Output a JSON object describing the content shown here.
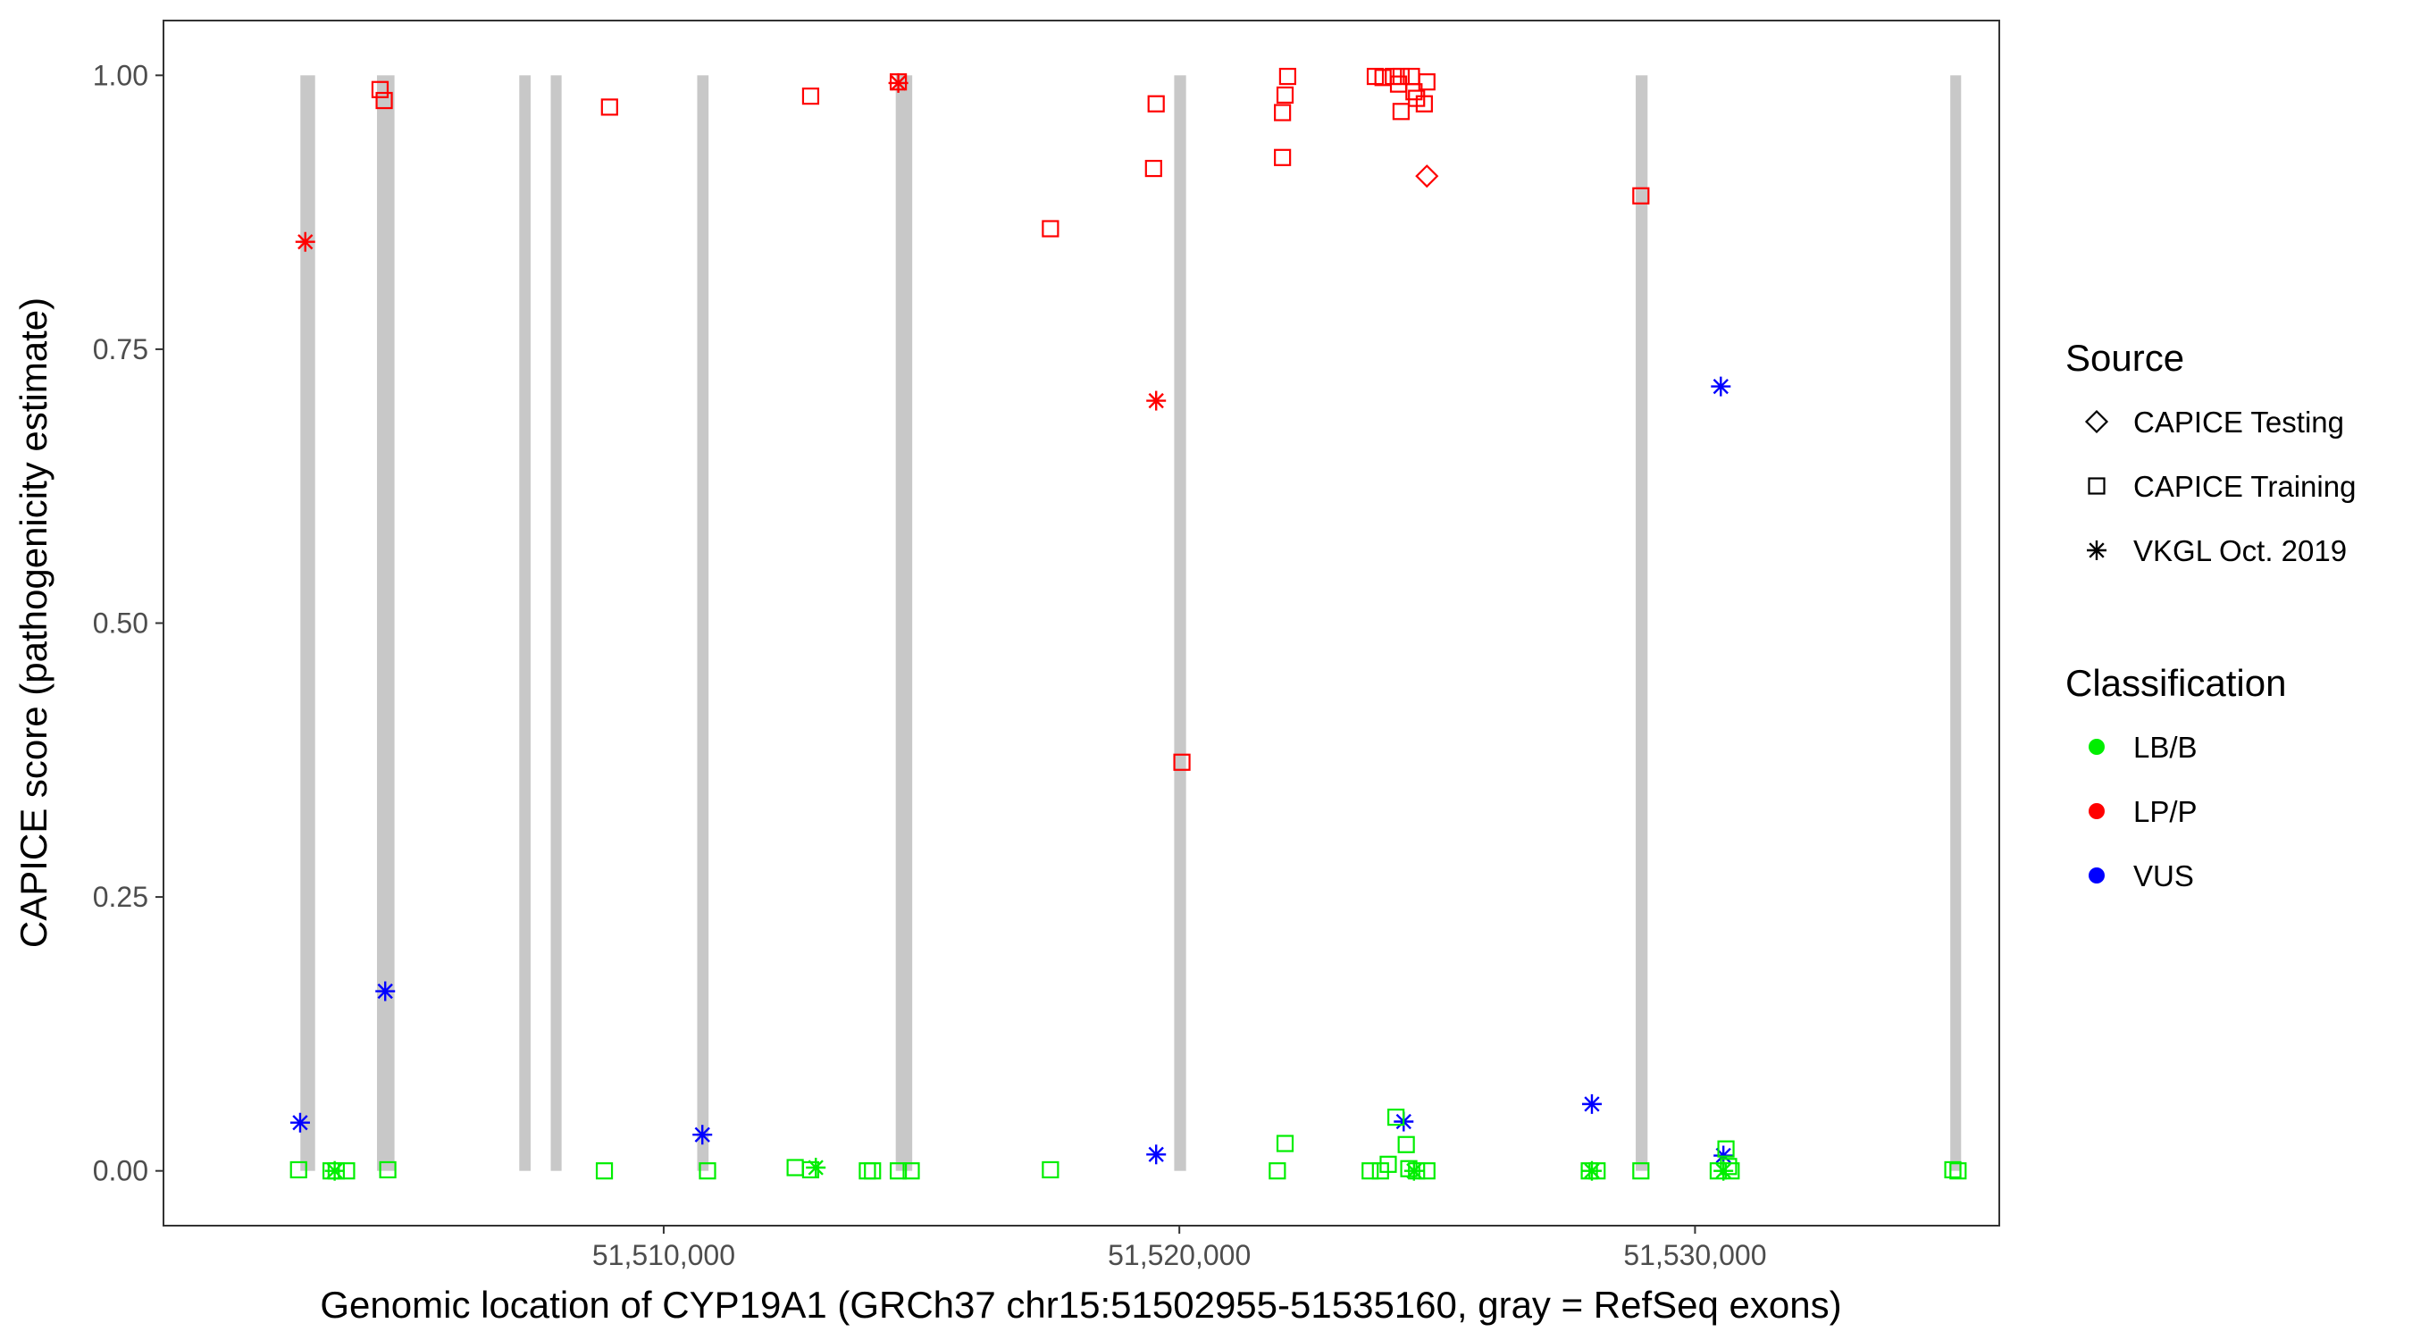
{
  "chart_data": {
    "type": "scatter",
    "xlabel": "Genomic location of CYP19A1 (GRCh37 chr15:51502955-51535160, gray = RefSeq exons)",
    "ylabel": "CAPICE score (pathogenicity estimate)",
    "xlim": [
      51500300,
      51535900
    ],
    "ylim": [
      -0.05,
      1.05
    ],
    "x_ticks": [
      51510000,
      51520000,
      51530000
    ],
    "x_tick_labels": [
      "51,510,000",
      "51,520,000",
      "51,530,000"
    ],
    "y_ticks": [
      0.0,
      0.25,
      0.5,
      0.75,
      1.0
    ],
    "y_tick_labels": [
      "0.00",
      "0.25",
      "0.50",
      "0.75",
      "1.00"
    ],
    "grid": false,
    "exon_color": "#c8c8c8",
    "exons": [
      {
        "start": 51502955,
        "end": 51503240
      },
      {
        "start": 51504440,
        "end": 51504780
      },
      {
        "start": 51507200,
        "end": 51507420
      },
      {
        "start": 51507810,
        "end": 51508020
      },
      {
        "start": 51510650,
        "end": 51510870
      },
      {
        "start": 51514500,
        "end": 51514820
      },
      {
        "start": 51519900,
        "end": 51520130
      },
      {
        "start": 51528850,
        "end": 51529080
      },
      {
        "start": 51534950,
        "end": 51535160
      }
    ],
    "legends": [
      {
        "title": "Source",
        "position": "right",
        "entries": [
          {
            "label": "CAPICE Testing",
            "shape": "diamond"
          },
          {
            "label": "CAPICE Training",
            "shape": "square"
          },
          {
            "label": "VKGL Oct. 2019",
            "shape": "asterisk"
          }
        ]
      },
      {
        "title": "Classification",
        "position": "right",
        "entries": [
          {
            "label": "LB/B",
            "color": "#00ee00"
          },
          {
            "label": "LP/P",
            "color": "#ff0000"
          },
          {
            "label": "VUS",
            "color": "#0000ff"
          }
        ]
      }
    ],
    "class_colors": {
      "LB/B": "#00ee00",
      "LP/P": "#ff0000",
      "VUS": "#0000ff"
    },
    "points": [
      {
        "x": 51504500,
        "y": 0.987,
        "source": "CAPICE Training",
        "class": "LP/P"
      },
      {
        "x": 51504580,
        "y": 0.977,
        "source": "CAPICE Training",
        "class": "LP/P"
      },
      {
        "x": 51508950,
        "y": 0.971,
        "source": "CAPICE Training",
        "class": "LP/P"
      },
      {
        "x": 51512850,
        "y": 0.981,
        "source": "CAPICE Training",
        "class": "LP/P"
      },
      {
        "x": 51514550,
        "y": 0.994,
        "source": "CAPICE Training",
        "class": "LP/P"
      },
      {
        "x": 51517500,
        "y": 0.86,
        "source": "CAPICE Training",
        "class": "LP/P"
      },
      {
        "x": 51519550,
        "y": 0.974,
        "source": "CAPICE Training",
        "class": "LP/P"
      },
      {
        "x": 51519500,
        "y": 0.915,
        "source": "CAPICE Training",
        "class": "LP/P"
      },
      {
        "x": 51520050,
        "y": 0.373,
        "source": "CAPICE Training",
        "class": "LP/P"
      },
      {
        "x": 51522100,
        "y": 0.999,
        "source": "CAPICE Training",
        "class": "LP/P"
      },
      {
        "x": 51522050,
        "y": 0.982,
        "source": "CAPICE Training",
        "class": "LP/P"
      },
      {
        "x": 51522000,
        "y": 0.966,
        "source": "CAPICE Training",
        "class": "LP/P"
      },
      {
        "x": 51522000,
        "y": 0.925,
        "source": "CAPICE Training",
        "class": "LP/P"
      },
      {
        "x": 51523800,
        "y": 0.999,
        "source": "CAPICE Training",
        "class": "LP/P"
      },
      {
        "x": 51523950,
        "y": 0.998,
        "source": "CAPICE Training",
        "class": "LP/P"
      },
      {
        "x": 51524150,
        "y": 0.999,
        "source": "CAPICE Training",
        "class": "LP/P"
      },
      {
        "x": 51524300,
        "y": 0.999,
        "source": "CAPICE Training",
        "class": "LP/P"
      },
      {
        "x": 51524500,
        "y": 0.999,
        "source": "CAPICE Training",
        "class": "LP/P"
      },
      {
        "x": 51524250,
        "y": 0.992,
        "source": "CAPICE Training",
        "class": "LP/P"
      },
      {
        "x": 51524800,
        "y": 0.994,
        "source": "CAPICE Training",
        "class": "LP/P"
      },
      {
        "x": 51524550,
        "y": 0.985,
        "source": "CAPICE Training",
        "class": "LP/P"
      },
      {
        "x": 51524600,
        "y": 0.979,
        "source": "CAPICE Training",
        "class": "LP/P"
      },
      {
        "x": 51524750,
        "y": 0.974,
        "source": "CAPICE Training",
        "class": "LP/P"
      },
      {
        "x": 51524300,
        "y": 0.967,
        "source": "CAPICE Training",
        "class": "LP/P"
      },
      {
        "x": 51528950,
        "y": 0.89,
        "source": "CAPICE Training",
        "class": "LP/P"
      },
      {
        "x": 51524800,
        "y": 0.908,
        "source": "CAPICE Testing",
        "class": "LP/P"
      },
      {
        "x": 51503050,
        "y": 0.848,
        "source": "VKGL Oct. 2019",
        "class": "LP/P"
      },
      {
        "x": 51514550,
        "y": 0.993,
        "source": "VKGL Oct. 2019",
        "class": "LP/P"
      },
      {
        "x": 51519550,
        "y": 0.703,
        "source": "VKGL Oct. 2019",
        "class": "LP/P"
      },
      {
        "x": 51502950,
        "y": 0.044,
        "source": "VKGL Oct. 2019",
        "class": "VUS"
      },
      {
        "x": 51504600,
        "y": 0.164,
        "source": "VKGL Oct. 2019",
        "class": "VUS"
      },
      {
        "x": 51510750,
        "y": 0.033,
        "source": "VKGL Oct. 2019",
        "class": "VUS"
      },
      {
        "x": 51519550,
        "y": 0.015,
        "source": "VKGL Oct. 2019",
        "class": "VUS"
      },
      {
        "x": 51524350,
        "y": 0.045,
        "source": "VKGL Oct. 2019",
        "class": "VUS"
      },
      {
        "x": 51528000,
        "y": 0.061,
        "source": "VKGL Oct. 2019",
        "class": "VUS"
      },
      {
        "x": 51530500,
        "y": 0.716,
        "source": "VKGL Oct. 2019",
        "class": "VUS"
      },
      {
        "x": 51530550,
        "y": 0.014,
        "source": "VKGL Oct. 2019",
        "class": "VUS"
      },
      {
        "x": 51502920,
        "y": 0.001,
        "source": "CAPICE Training",
        "class": "LB/B"
      },
      {
        "x": 51503550,
        "y": 0.0,
        "source": "CAPICE Training",
        "class": "LB/B"
      },
      {
        "x": 51503650,
        "y": 0.0,
        "source": "CAPICE Training",
        "class": "LB/B"
      },
      {
        "x": 51503850,
        "y": 0.0,
        "source": "CAPICE Training",
        "class": "LB/B"
      },
      {
        "x": 51504650,
        "y": 0.001,
        "source": "CAPICE Training",
        "class": "LB/B"
      },
      {
        "x": 51508850,
        "y": 0.0,
        "source": "CAPICE Training",
        "class": "LB/B"
      },
      {
        "x": 51510850,
        "y": 0.0,
        "source": "CAPICE Training",
        "class": "LB/B"
      },
      {
        "x": 51512550,
        "y": 0.003,
        "source": "CAPICE Training",
        "class": "LB/B"
      },
      {
        "x": 51512850,
        "y": 0.001,
        "source": "CAPICE Training",
        "class": "LB/B"
      },
      {
        "x": 51513950,
        "y": 0.0,
        "source": "CAPICE Training",
        "class": "LB/B"
      },
      {
        "x": 51514050,
        "y": 0.0,
        "source": "CAPICE Training",
        "class": "LB/B"
      },
      {
        "x": 51514550,
        "y": 0.0,
        "source": "CAPICE Training",
        "class": "LB/B"
      },
      {
        "x": 51514800,
        "y": 0.0,
        "source": "CAPICE Training",
        "class": "LB/B"
      },
      {
        "x": 51517500,
        "y": 0.001,
        "source": "CAPICE Training",
        "class": "LB/B"
      },
      {
        "x": 51521900,
        "y": 0.0,
        "source": "CAPICE Training",
        "class": "LB/B"
      },
      {
        "x": 51522050,
        "y": 0.025,
        "source": "CAPICE Training",
        "class": "LB/B"
      },
      {
        "x": 51523700,
        "y": 0.0,
        "source": "CAPICE Training",
        "class": "LB/B"
      },
      {
        "x": 51523900,
        "y": 0.0,
        "source": "CAPICE Training",
        "class": "LB/B"
      },
      {
        "x": 51524050,
        "y": 0.006,
        "source": "CAPICE Training",
        "class": "LB/B"
      },
      {
        "x": 51524200,
        "y": 0.049,
        "source": "CAPICE Training",
        "class": "LB/B"
      },
      {
        "x": 51524400,
        "y": 0.024,
        "source": "CAPICE Training",
        "class": "LB/B"
      },
      {
        "x": 51524450,
        "y": 0.002,
        "source": "CAPICE Training",
        "class": "LB/B"
      },
      {
        "x": 51524600,
        "y": 0.0,
        "source": "CAPICE Training",
        "class": "LB/B"
      },
      {
        "x": 51524800,
        "y": 0.0,
        "source": "CAPICE Training",
        "class": "LB/B"
      },
      {
        "x": 51527950,
        "y": 0.0,
        "source": "CAPICE Training",
        "class": "LB/B"
      },
      {
        "x": 51528100,
        "y": 0.0,
        "source": "CAPICE Training",
        "class": "LB/B"
      },
      {
        "x": 51528950,
        "y": 0.0,
        "source": "CAPICE Training",
        "class": "LB/B"
      },
      {
        "x": 51530450,
        "y": 0.0,
        "source": "CAPICE Training",
        "class": "LB/B"
      },
      {
        "x": 51530600,
        "y": 0.02,
        "source": "CAPICE Training",
        "class": "LB/B"
      },
      {
        "x": 51530650,
        "y": 0.004,
        "source": "CAPICE Training",
        "class": "LB/B"
      },
      {
        "x": 51530700,
        "y": 0.0,
        "source": "CAPICE Training",
        "class": "LB/B"
      },
      {
        "x": 51535000,
        "y": 0.001,
        "source": "CAPICE Training",
        "class": "LB/B"
      },
      {
        "x": 51535100,
        "y": 0.0,
        "source": "CAPICE Training",
        "class": "LB/B"
      },
      {
        "x": 51503620,
        "y": 0.0,
        "source": "VKGL Oct. 2019",
        "class": "LB/B"
      },
      {
        "x": 51512950,
        "y": 0.003,
        "source": "VKGL Oct. 2019",
        "class": "LB/B"
      },
      {
        "x": 51524550,
        "y": 0.0,
        "source": "VKGL Oct. 2019",
        "class": "LB/B"
      },
      {
        "x": 51528000,
        "y": 0.0,
        "source": "VKGL Oct. 2019",
        "class": "LB/B"
      },
      {
        "x": 51530550,
        "y": 0.0,
        "source": "VKGL Oct. 2019",
        "class": "LB/B"
      }
    ]
  }
}
